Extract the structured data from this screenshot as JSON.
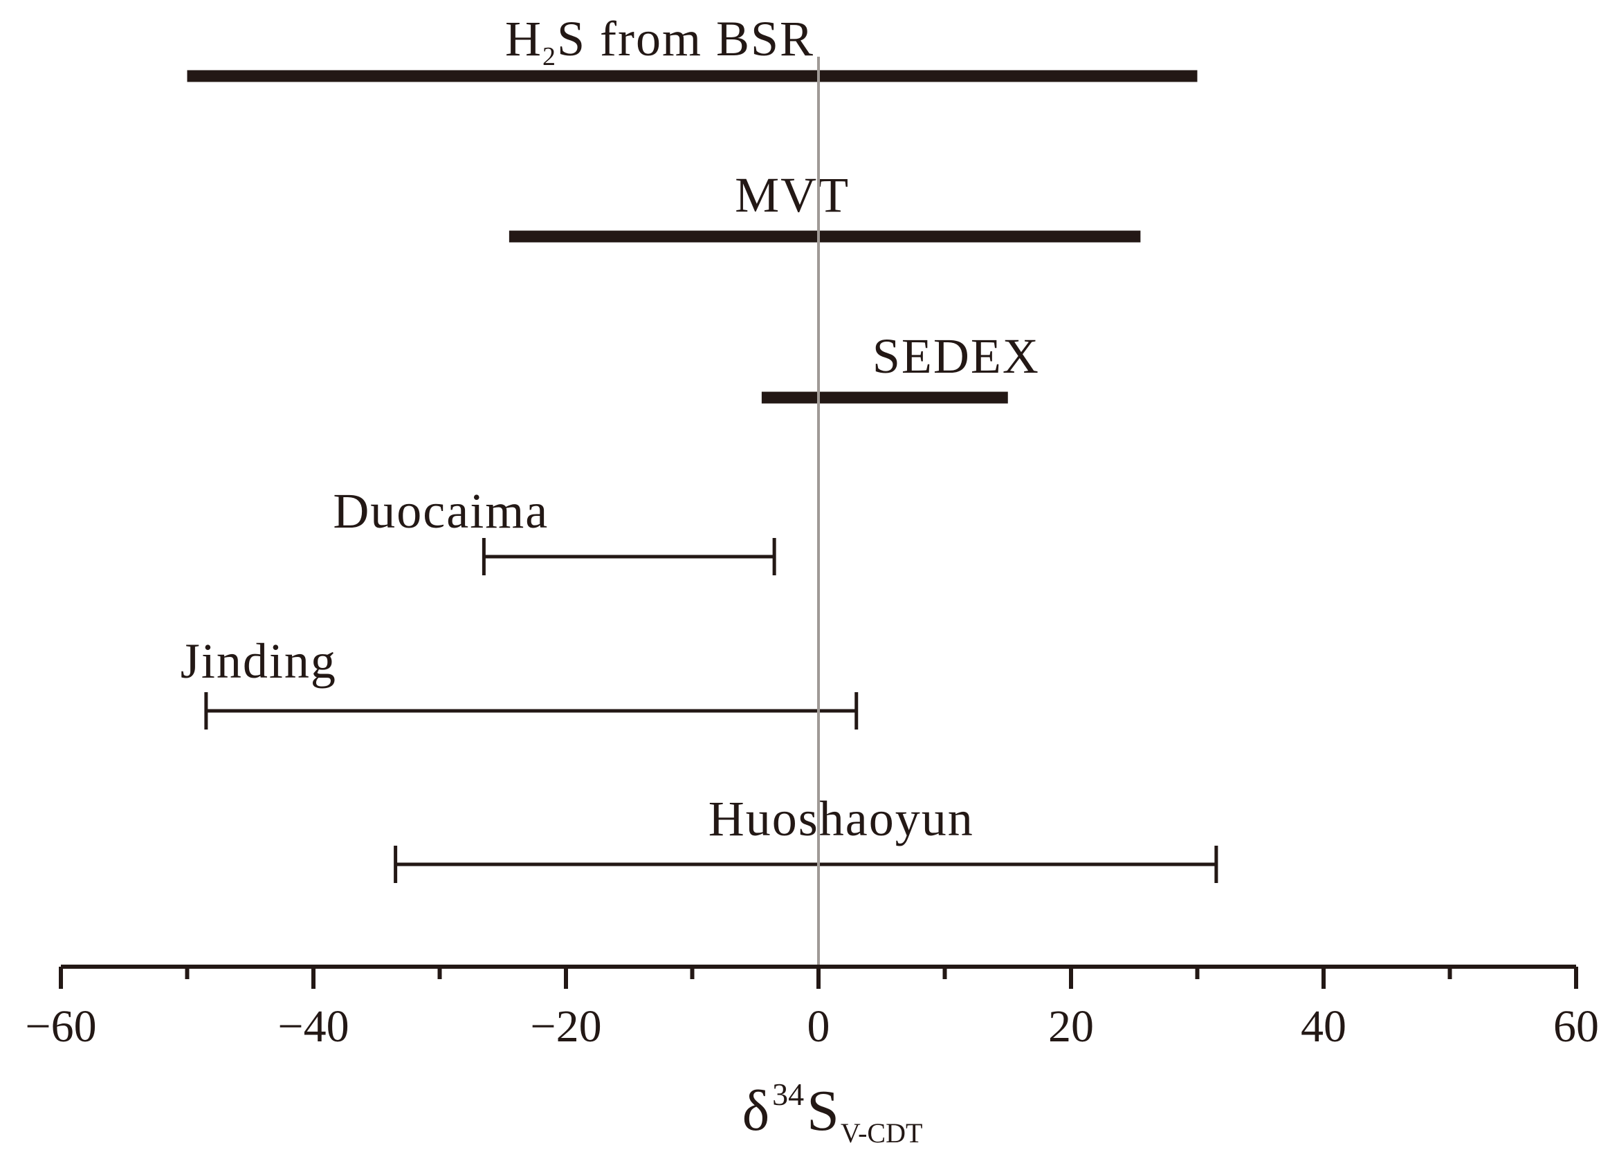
{
  "chart_data": {
    "type": "range",
    "xlabel": {
      "symbol": "δ",
      "superscript": "34",
      "base": "S",
      "subscript": "V-CDT"
    },
    "xlim": [
      -60,
      60
    ],
    "major_ticks": [
      -60,
      -40,
      -20,
      0,
      20,
      40,
      60
    ],
    "tick_labels": [
      "−60",
      "−40",
      "−20",
      "0",
      "20",
      "40",
      "60"
    ],
    "minor_ticks": [
      -50,
      -30,
      -10,
      10,
      30,
      50
    ],
    "reference_line": 0,
    "grid": false,
    "ranges": [
      {
        "label": "H2S from BSR",
        "label_parts": [
          "H",
          "2",
          "S from BSR"
        ],
        "min": -50,
        "max": 30,
        "style": "thick-bar"
      },
      {
        "label": "MVT",
        "min": -24.5,
        "max": 25.5,
        "style": "thick-bar"
      },
      {
        "label": "SEDEX",
        "min": -4.5,
        "max": 15,
        "style": "thick-bar"
      },
      {
        "label": "Duocaima",
        "min": -26.5,
        "max": -3.5,
        "style": "error-bar"
      },
      {
        "label": "Jinding",
        "min": -48.5,
        "max": 3,
        "style": "error-bar"
      },
      {
        "label": "Huoshaoyun",
        "min": -33.5,
        "max": 31.5,
        "style": "error-bar"
      }
    ],
    "colors": {
      "ink": "#231815",
      "reference_line": "#a09a96"
    }
  }
}
